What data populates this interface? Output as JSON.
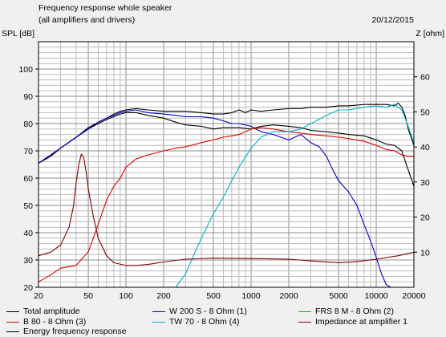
{
  "header": {
    "title": "Frequency response whole speaker",
    "subtitle": "(all amplifiers and drivers)",
    "date": "20/12/2015"
  },
  "chart_data": {
    "type": "line",
    "title": "Frequency response whole speaker",
    "subtitle": "(all amplifiers and drivers)",
    "ylabel": "SPL [dB]",
    "y2label": "Z [ohm]",
    "xscale": "log",
    "xlim": [
      20,
      20000
    ],
    "ylim": [
      20,
      110
    ],
    "y2lim": [
      0,
      70
    ],
    "xticks": [
      20,
      50,
      100,
      200,
      500,
      1000,
      2000,
      5000,
      10000,
      20000
    ],
    "xtick_labels": [
      "20",
      "50",
      "100",
      "200",
      "500",
      "1000",
      "2000",
      "5000",
      "10000",
      "20000"
    ],
    "yticks": [
      20,
      30,
      40,
      50,
      60,
      70,
      80,
      90,
      100
    ],
    "y2ticks": [
      10,
      20,
      30,
      40,
      50,
      60
    ],
    "grid": true,
    "legend_position": "bottom",
    "series": [
      {
        "name": "Total amplitude",
        "color": "#000000",
        "axis": "left",
        "x": [
          20,
          25,
          30,
          40,
          50,
          60,
          70,
          80,
          90,
          100,
          120,
          150,
          200,
          250,
          300,
          400,
          500,
          600,
          700,
          800,
          900,
          1000,
          1200,
          1500,
          2000,
          2500,
          3000,
          4000,
          5000,
          6000,
          8000,
          10000,
          12000,
          14000,
          15000,
          16000,
          17000,
          18000,
          20000
        ],
        "y": [
          65.5,
          68,
          71,
          75,
          78.5,
          80.5,
          82,
          83.5,
          84.5,
          85,
          85.5,
          85,
          84.5,
          84.5,
          84.5,
          84,
          83.5,
          83.5,
          84,
          85,
          84,
          85,
          84.5,
          85,
          85.5,
          85.5,
          86,
          86,
          86.5,
          86.5,
          87,
          87,
          87,
          86.5,
          87.5,
          86,
          83,
          78,
          72
        ]
      },
      {
        "name": "Energy frequency response",
        "color": "#000000",
        "axis": "left",
        "x": [
          20,
          25,
          30,
          40,
          50,
          60,
          70,
          80,
          90,
          100,
          120,
          150,
          200,
          250,
          300,
          400,
          500,
          600,
          700,
          800,
          1000,
          1200,
          1500,
          2000,
          2500,
          3000,
          4000,
          5000,
          6000,
          8000,
          10000,
          12000,
          14000,
          16000,
          18000,
          20000
        ],
        "y": [
          65.5,
          68,
          71,
          75,
          78,
          80,
          81.5,
          82.5,
          83.5,
          84,
          84,
          83,
          82,
          80.5,
          79.5,
          79,
          78,
          78.5,
          78.5,
          78.5,
          78,
          79,
          79.5,
          79,
          78.5,
          77.5,
          77,
          76.5,
          76,
          75.5,
          74,
          72.5,
          72,
          70,
          63,
          57
        ]
      },
      {
        "name": "W 200 S - 8 Ohm (1)",
        "color": "#0000c8",
        "axis": "left",
        "x": [
          20,
          30,
          40,
          50,
          60,
          70,
          80,
          90,
          100,
          120,
          150,
          200,
          250,
          300,
          400,
          500,
          600,
          700,
          800,
          1000,
          1200,
          1500,
          2000,
          2500,
          3000,
          3500,
          4000,
          4500,
          5000,
          6000,
          7000,
          8000,
          9000,
          10000,
          11000,
          12000,
          13000,
          15000,
          20000
        ],
        "y": [
          65.5,
          71,
          75,
          78,
          80.5,
          82,
          83,
          84,
          84.5,
          85,
          84,
          83.5,
          83,
          82.5,
          82.5,
          82,
          81,
          80,
          80,
          79,
          77,
          76,
          74,
          76,
          73,
          71.5,
          68,
          63,
          59,
          55,
          50,
          43,
          37,
          31,
          25,
          21,
          19,
          18,
          18
        ]
      },
      {
        "name": "FRS 8 M - 8 Ohm (2)",
        "color": "#00c000",
        "axis": "left",
        "x": [
          20,
          100,
          1000,
          10000,
          20000
        ],
        "y": [
          20,
          20,
          20,
          20,
          20
        ]
      },
      {
        "name": "B 80 - 8 Ohm (3)",
        "color": "#e00000",
        "axis": "left",
        "x": [
          20,
          25,
          30,
          40,
          50,
          60,
          70,
          80,
          90,
          100,
          120,
          150,
          200,
          250,
          300,
          400,
          500,
          600,
          700,
          800,
          900,
          1000,
          1200,
          1500,
          2000,
          2500,
          3000,
          4000,
          5000,
          6000,
          8000,
          10000,
          12000,
          14000,
          16000,
          18000,
          20000
        ],
        "y": [
          22,
          24.5,
          27,
          28,
          33,
          43,
          52,
          57,
          60,
          64,
          67,
          68.5,
          70,
          71,
          71.5,
          73,
          74,
          75,
          75.5,
          76,
          77,
          78,
          78.5,
          78,
          77,
          76.5,
          76,
          75.5,
          75,
          74.5,
          73.5,
          72,
          70.5,
          70,
          68.5,
          68,
          68
        ]
      },
      {
        "name": "TW 70 - 8 Ohm (4)",
        "color": "#00b4c8",
        "axis": "left",
        "x": [
          200,
          250,
          300,
          350,
          400,
          500,
          600,
          700,
          800,
          1000,
          1200,
          1500,
          2000,
          2500,
          3000,
          4000,
          5000,
          6000,
          8000,
          10000,
          12000,
          14000,
          16000,
          18000,
          20000
        ],
        "y": [
          18,
          20,
          25,
          32,
          38,
          47,
          53,
          59,
          64,
          71,
          75,
          77,
          77,
          78,
          80,
          83,
          85,
          85,
          86,
          86.5,
          86,
          87,
          85,
          79,
          73
        ]
      },
      {
        "name": "Impedance at amplifier 1",
        "color": "#800000",
        "axis": "right",
        "x": [
          20,
          25,
          30,
          35,
          38,
          40,
          42,
          44,
          46,
          48,
          50,
          55,
          60,
          70,
          80,
          100,
          120,
          150,
          200,
          300,
          500,
          1000,
          2000,
          3000,
          5000,
          7000,
          10000,
          15000,
          20000
        ],
        "y": [
          9,
          10,
          12,
          17,
          23,
          30,
          35,
          38,
          37,
          33,
          28,
          20,
          14,
          9,
          7,
          6.2,
          6.2,
          6.5,
          7.2,
          8,
          8.3,
          8.2,
          8,
          7.5,
          7,
          7.3,
          8,
          9,
          10
        ]
      }
    ]
  },
  "legend": [
    {
      "label": "Total amplitude",
      "color": "#000000"
    },
    {
      "label": "W 200 S - 8 Ohm (1)",
      "color": "#0000c8"
    },
    {
      "label": "FRS 8 M - 8 Ohm (2)",
      "color": "#00c000"
    },
    {
      "label": "B 80 - 8 Ohm (3)",
      "color": "#e00000"
    },
    {
      "label": "TW 70 - 8 Ohm (4)",
      "color": "#00b4c8"
    },
    {
      "label": "Impedance at amplifier 1",
      "color": "#800000"
    },
    {
      "label": "Energy frequency response",
      "color": "#000000"
    }
  ]
}
